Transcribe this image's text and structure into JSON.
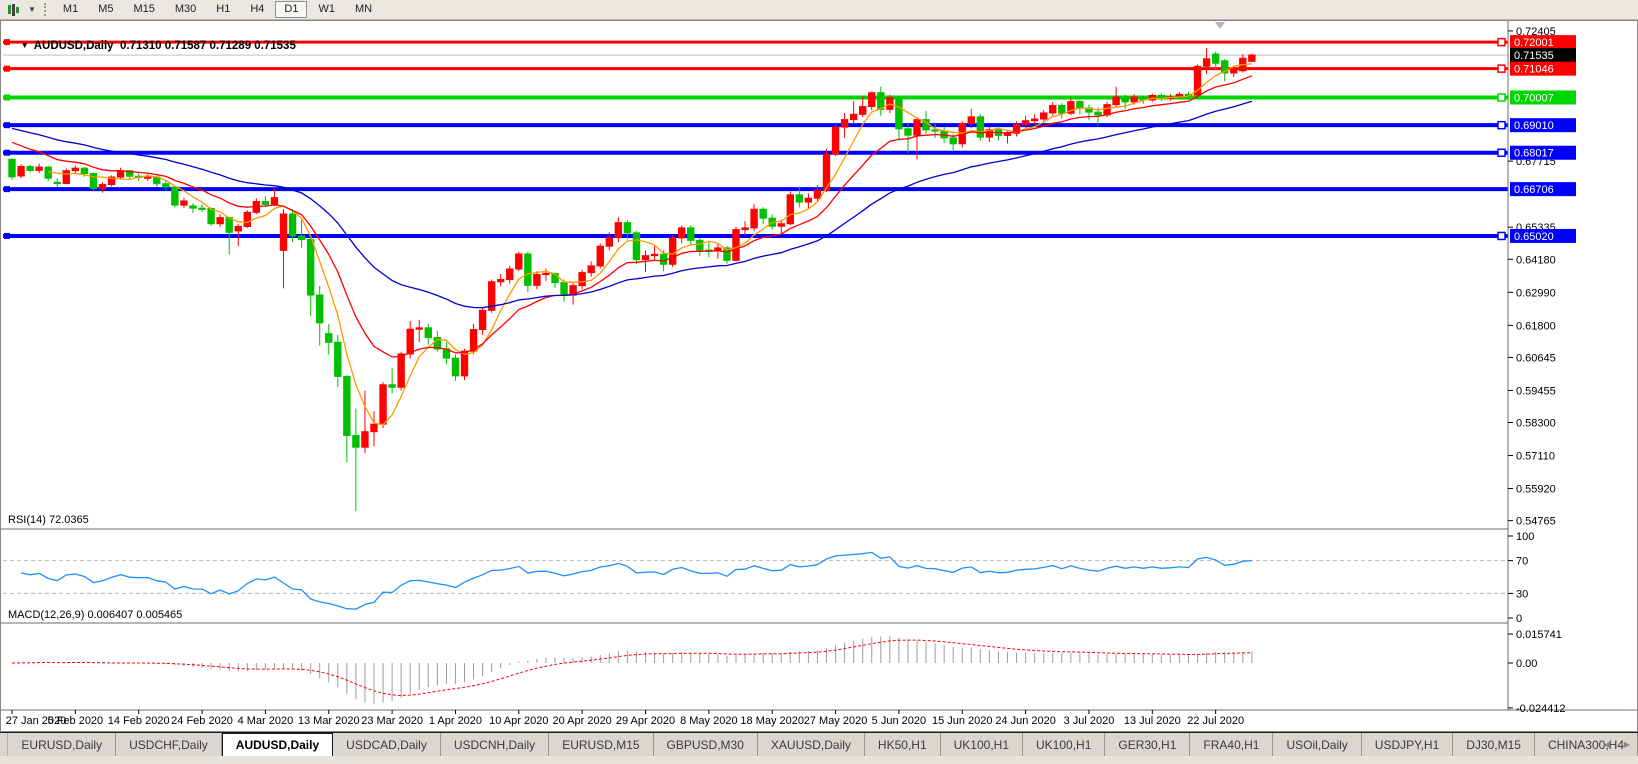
{
  "toolbar": {
    "indicator_icon": "chart-indicator-icon",
    "timeframes": [
      "M1",
      "M5",
      "M15",
      "M30",
      "H1",
      "H4",
      "D1",
      "W1",
      "MN"
    ],
    "active_timeframe": "D1"
  },
  "chart": {
    "title": "AUDUSD,Daily",
    "ohlc_text": "0.71310 0.71587 0.71289 0.71535",
    "collapse_icon": "triangle-down-icon",
    "rsi_label": "RSI(14) 72.0365",
    "macd_label": "MACD(12,26,9) 0.006407 0.005465"
  },
  "price_axis": {
    "ticks": [
      "0.72405",
      "0.67715",
      "0.65335",
      "0.64180",
      "0.62990",
      "0.61800",
      "0.60645",
      "0.59455",
      "0.58300",
      "0.57110",
      "0.55920",
      "0.54765"
    ],
    "badges": [
      {
        "value": "0.72001",
        "bg": "#FF0000",
        "fg": "#FFFFFF"
      },
      {
        "value": "0.71535",
        "bg": "#000000",
        "fg": "#FFFFFF"
      },
      {
        "value": "0.71046",
        "bg": "#FF0000",
        "fg": "#FFFFFF"
      },
      {
        "value": "0.70007",
        "bg": "#00D500",
        "fg": "#FFFFFF"
      },
      {
        "value": "0.69010",
        "bg": "#0000FF",
        "fg": "#FFFFFF"
      },
      {
        "value": "0.68017",
        "bg": "#0000FF",
        "fg": "#FFFFFF"
      },
      {
        "value": "0.66706",
        "bg": "#0000FF",
        "fg": "#FFFFFF"
      },
      {
        "value": "0.65020",
        "bg": "#0000FF",
        "fg": "#FFFFFF"
      }
    ]
  },
  "rsi_axis": [
    "100",
    "70",
    "30",
    "0"
  ],
  "macd_axis": [
    "0.015741",
    "0.00",
    "-0.024412"
  ],
  "date_axis": [
    "27 Jan 2020",
    "5 Feb 2020",
    "14 Feb 2020",
    "24 Feb 2020",
    "4 Mar 2020",
    "13 Mar 2020",
    "23 Mar 2020",
    "1 Apr 2020",
    "10 Apr 2020",
    "20 Apr 2020",
    "29 Apr 2020",
    "8 May 2020",
    "18 May 2020",
    "27 May 2020",
    "5 Jun 2020",
    "15 Jun 2020",
    "24 Jun 2020",
    "3 Jul 2020",
    "13 Jul 2020",
    "22 Jul 2020"
  ],
  "tabs": {
    "items": [
      "EURUSD,Daily",
      "USDCHF,Daily",
      "AUDUSD,Daily",
      "USDCAD,Daily",
      "USDCNH,Daily",
      "EURUSD,M15",
      "GBPUSD,M30",
      "XAUUSD,Daily",
      "HK50,H1",
      "UK100,H1",
      "UK100,H1",
      "GER30,H1",
      "FRA40,H1",
      "USOil,Daily",
      "USDJPY,H1",
      "DJ30,M15",
      "CHINA300,H4"
    ],
    "active": "AUDUSD,Daily",
    "scroll_left_icon": "tab-scroll-left-icon",
    "scroll_right_icon": "tab-scroll-right-icon"
  },
  "chart_data": {
    "type": "candlestick",
    "symbol": "AUDUSD",
    "timeframe": "Daily",
    "title": "AUDUSD,Daily 0.71310 0.71587 0.71289 0.71535",
    "up_color": "#FF0000",
    "down_color": "#00C000",
    "price_range": [
      0.545,
      0.7251
    ],
    "current_price": 0.71535,
    "hlines": [
      {
        "price": 0.72001,
        "color": "#FF0000",
        "width": 3
      },
      {
        "price": 0.71046,
        "color": "#FF0000",
        "width": 3
      },
      {
        "price": 0.70007,
        "color": "#00D500",
        "width": 4
      },
      {
        "price": 0.6901,
        "color": "#0000FF",
        "width": 4
      },
      {
        "price": 0.68017,
        "color": "#0000FF",
        "width": 4
      },
      {
        "price": 0.66706,
        "color": "#0000FF",
        "width": 4,
        "right_marker": false
      },
      {
        "price": 0.6502,
        "color": "#0000FF",
        "width": 4
      }
    ],
    "moving_averages": [
      {
        "method": "sma",
        "period": 5,
        "color": "#FF9900"
      },
      {
        "method": "ema",
        "period": 13,
        "color": "#FF0000",
        "seed": 0.686
      },
      {
        "method": "ema",
        "period": 34,
        "color": "#0000CC",
        "seed": 0.69
      }
    ],
    "rsi": {
      "period": 14,
      "current": 72.0365,
      "levels": [
        30,
        70
      ],
      "range": [
        0,
        100
      ],
      "color": "#1E90FF"
    },
    "macd": {
      "fast": 12,
      "slow": 26,
      "signal": 9,
      "current": 0.006407,
      "signal_current": 0.005465,
      "range": [
        -0.024412,
        0.015741
      ],
      "histogram_color": "#9C9C9C",
      "signal_color": "#FF0000"
    },
    "ohlc": [
      [
        0.6778,
        0.6782,
        0.6705,
        0.6715
      ],
      [
        0.6718,
        0.676,
        0.671,
        0.6752
      ],
      [
        0.6752,
        0.6758,
        0.673,
        0.6738
      ],
      [
        0.6738,
        0.6762,
        0.6728,
        0.675
      ],
      [
        0.675,
        0.6755,
        0.67,
        0.671
      ],
      [
        0.6695,
        0.671,
        0.6678,
        0.6691
      ],
      [
        0.6691,
        0.6745,
        0.6688,
        0.6737
      ],
      [
        0.6737,
        0.6756,
        0.6725,
        0.6746
      ],
      [
        0.6746,
        0.675,
        0.6715,
        0.6727
      ],
      [
        0.6727,
        0.673,
        0.6662,
        0.6673
      ],
      [
        0.6673,
        0.6695,
        0.6658,
        0.6687
      ],
      [
        0.6687,
        0.672,
        0.668,
        0.6714
      ],
      [
        0.6714,
        0.6748,
        0.6705,
        0.6737
      ],
      [
        0.6737,
        0.674,
        0.6705,
        0.6717
      ],
      [
        0.6717,
        0.6728,
        0.67,
        0.6713
      ],
      [
        0.6713,
        0.6725,
        0.67,
        0.6714
      ],
      [
        0.6714,
        0.672,
        0.668,
        0.669
      ],
      [
        0.669,
        0.6702,
        0.6665,
        0.6678
      ],
      [
        0.6678,
        0.668,
        0.6605,
        0.6613
      ],
      [
        0.6613,
        0.664,
        0.6603,
        0.6628
      ],
      [
        0.661,
        0.662,
        0.6585,
        0.6602
      ],
      [
        0.6602,
        0.6618,
        0.6588,
        0.6601
      ],
      [
        0.6601,
        0.6605,
        0.6538,
        0.6546
      ],
      [
        0.6546,
        0.658,
        0.6535,
        0.6568
      ],
      [
        0.6568,
        0.6572,
        0.6435,
        0.6515
      ],
      [
        0.652,
        0.6545,
        0.6465,
        0.6536
      ],
      [
        0.6536,
        0.6595,
        0.653,
        0.6587
      ],
      [
        0.6587,
        0.6638,
        0.658,
        0.6626
      ],
      [
        0.6626,
        0.6645,
        0.6605,
        0.6615
      ],
      [
        0.6615,
        0.6672,
        0.661,
        0.664
      ],
      [
        0.645,
        0.6598,
        0.6313,
        0.6581
      ],
      [
        0.6581,
        0.6598,
        0.648,
        0.6502
      ],
      [
        0.6502,
        0.656,
        0.646,
        0.6489
      ],
      [
        0.6489,
        0.6495,
        0.6214,
        0.6289
      ],
      [
        0.6289,
        0.6322,
        0.6107,
        0.6189
      ],
      [
        0.615,
        0.6185,
        0.6075,
        0.6119
      ],
      [
        0.6119,
        0.6145,
        0.5958,
        0.5996
      ],
      [
        0.5996,
        0.6,
        0.5686,
        0.5783
      ],
      [
        0.5783,
        0.588,
        0.551,
        0.5741
      ],
      [
        0.5741,
        0.5945,
        0.572,
        0.5797
      ],
      [
        0.5797,
        0.587,
        0.5745,
        0.5824
      ],
      [
        0.5824,
        0.5975,
        0.581,
        0.5966
      ],
      [
        0.5966,
        0.6025,
        0.5935,
        0.5957
      ],
      [
        0.5957,
        0.6085,
        0.5945,
        0.6077
      ],
      [
        0.6077,
        0.6195,
        0.606,
        0.6166
      ],
      [
        0.6166,
        0.62,
        0.612,
        0.6171
      ],
      [
        0.6171,
        0.6185,
        0.611,
        0.6136
      ],
      [
        0.6136,
        0.616,
        0.6085,
        0.6095
      ],
      [
        0.6095,
        0.612,
        0.604,
        0.6062
      ],
      [
        0.6062,
        0.6075,
        0.598,
        0.5998
      ],
      [
        0.5998,
        0.6095,
        0.5983,
        0.6087
      ],
      [
        0.6087,
        0.6185,
        0.6075,
        0.6165
      ],
      [
        0.6165,
        0.6245,
        0.6145,
        0.6234
      ],
      [
        0.6234,
        0.6345,
        0.6225,
        0.6337
      ],
      [
        0.6337,
        0.6365,
        0.632,
        0.6345
      ],
      [
        0.6345,
        0.6395,
        0.633,
        0.6383
      ],
      [
        0.6383,
        0.6445,
        0.6375,
        0.6437
      ],
      [
        0.6437,
        0.6445,
        0.63,
        0.6324
      ],
      [
        0.6324,
        0.6375,
        0.631,
        0.6363
      ],
      [
        0.6363,
        0.6385,
        0.634,
        0.6367
      ],
      [
        0.6367,
        0.637,
        0.6315,
        0.6334
      ],
      [
        0.6334,
        0.6345,
        0.6265,
        0.6289
      ],
      [
        0.6289,
        0.6335,
        0.6255,
        0.6323
      ],
      [
        0.6323,
        0.638,
        0.631,
        0.637
      ],
      [
        0.637,
        0.641,
        0.6355,
        0.6394
      ],
      [
        0.6394,
        0.6475,
        0.6385,
        0.6465
      ],
      [
        0.6465,
        0.6515,
        0.645,
        0.6496
      ],
      [
        0.6496,
        0.657,
        0.648,
        0.655
      ],
      [
        0.655,
        0.656,
        0.649,
        0.6513
      ],
      [
        0.6513,
        0.652,
        0.64,
        0.6417
      ],
      [
        0.6417,
        0.645,
        0.6372,
        0.6431
      ],
      [
        0.6431,
        0.6465,
        0.6415,
        0.6436
      ],
      [
        0.6436,
        0.645,
        0.6375,
        0.64
      ],
      [
        0.64,
        0.6505,
        0.639,
        0.6495
      ],
      [
        0.6495,
        0.654,
        0.6475,
        0.6531
      ],
      [
        0.6531,
        0.654,
        0.647,
        0.6486
      ],
      [
        0.6486,
        0.6495,
        0.643,
        0.6451
      ],
      [
        0.6451,
        0.648,
        0.6425,
        0.645
      ],
      [
        0.645,
        0.6475,
        0.642,
        0.6459
      ],
      [
        0.6459,
        0.6465,
        0.6402,
        0.6414
      ],
      [
        0.6414,
        0.6535,
        0.641,
        0.6525
      ],
      [
        0.6525,
        0.6555,
        0.6505,
        0.6531
      ],
      [
        0.6531,
        0.6616,
        0.652,
        0.6598
      ],
      [
        0.6598,
        0.6605,
        0.6545,
        0.6566
      ],
      [
        0.6566,
        0.658,
        0.6525,
        0.6537
      ],
      [
        0.6537,
        0.656,
        0.651,
        0.6546
      ],
      [
        0.6546,
        0.6662,
        0.654,
        0.665
      ],
      [
        0.665,
        0.668,
        0.6605,
        0.6624
      ],
      [
        0.6624,
        0.6655,
        0.6602,
        0.6638
      ],
      [
        0.6638,
        0.6685,
        0.6625,
        0.6667
      ],
      [
        0.6667,
        0.6815,
        0.666,
        0.6797
      ],
      [
        0.6797,
        0.691,
        0.679,
        0.6894
      ],
      [
        0.6894,
        0.6945,
        0.6855,
        0.6921
      ],
      [
        0.6921,
        0.6988,
        0.6905,
        0.694
      ],
      [
        0.694,
        0.7005,
        0.693,
        0.6968
      ],
      [
        0.6968,
        0.7023,
        0.6955,
        0.7018
      ],
      [
        0.7018,
        0.704,
        0.6935,
        0.6958
      ],
      [
        0.6958,
        0.701,
        0.6945,
        0.7
      ],
      [
        0.7,
        0.7005,
        0.685,
        0.6888
      ],
      [
        0.6888,
        0.691,
        0.68,
        0.6865
      ],
      [
        0.6865,
        0.693,
        0.6778,
        0.6921
      ],
      [
        0.6921,
        0.6952,
        0.687,
        0.6884
      ],
      [
        0.6884,
        0.6905,
        0.6855,
        0.688
      ],
      [
        0.688,
        0.6895,
        0.6837,
        0.6855
      ],
      [
        0.6855,
        0.687,
        0.681,
        0.6834
      ],
      [
        0.6834,
        0.6915,
        0.682,
        0.6907
      ],
      [
        0.6907,
        0.696,
        0.689,
        0.6931
      ],
      [
        0.6931,
        0.694,
        0.6845,
        0.6858
      ],
      [
        0.6858,
        0.6895,
        0.684,
        0.6885
      ],
      [
        0.6885,
        0.6898,
        0.6845,
        0.6864
      ],
      [
        0.6864,
        0.6885,
        0.6835,
        0.6872
      ],
      [
        0.6872,
        0.6915,
        0.686,
        0.6903
      ],
      [
        0.6903,
        0.6935,
        0.689,
        0.6917
      ],
      [
        0.6917,
        0.694,
        0.6902,
        0.6923
      ],
      [
        0.6923,
        0.6955,
        0.6915,
        0.6945
      ],
      [
        0.6945,
        0.6985,
        0.6935,
        0.6972
      ],
      [
        0.6972,
        0.698,
        0.6925,
        0.6944
      ],
      [
        0.6944,
        0.6998,
        0.6938,
        0.6986
      ],
      [
        0.6986,
        0.699,
        0.694,
        0.6963
      ],
      [
        0.6963,
        0.6975,
        0.692,
        0.6948
      ],
      [
        0.6948,
        0.6965,
        0.69,
        0.6938
      ],
      [
        0.6938,
        0.6985,
        0.693,
        0.6975
      ],
      [
        0.6975,
        0.704,
        0.6965,
        0.7002
      ],
      [
        0.7002,
        0.701,
        0.696,
        0.6985
      ],
      [
        0.6985,
        0.7012,
        0.6975,
        0.7002
      ],
      [
        0.7002,
        0.7008,
        0.6978,
        0.6992
      ],
      [
        0.6992,
        0.7015,
        0.6985,
        0.7008
      ],
      [
        0.7008,
        0.7016,
        0.6988,
        0.6998
      ],
      [
        0.6998,
        0.7012,
        0.699,
        0.7003
      ],
      [
        0.7003,
        0.702,
        0.6995,
        0.7012
      ],
      [
        0.7012,
        0.7022,
        0.6992,
        0.7008
      ],
      [
        0.701,
        0.712,
        0.7,
        0.7113
      ],
      [
        0.7113,
        0.7179,
        0.7085,
        0.714
      ],
      [
        0.7157,
        0.7166,
        0.7103,
        0.7124
      ],
      [
        0.7133,
        0.714,
        0.7059,
        0.7089
      ],
      [
        0.7089,
        0.711,
        0.7075,
        0.7101
      ],
      [
        0.7097,
        0.7157,
        0.709,
        0.7142
      ],
      [
        0.7131,
        0.71587,
        0.71289,
        0.71535
      ]
    ]
  }
}
